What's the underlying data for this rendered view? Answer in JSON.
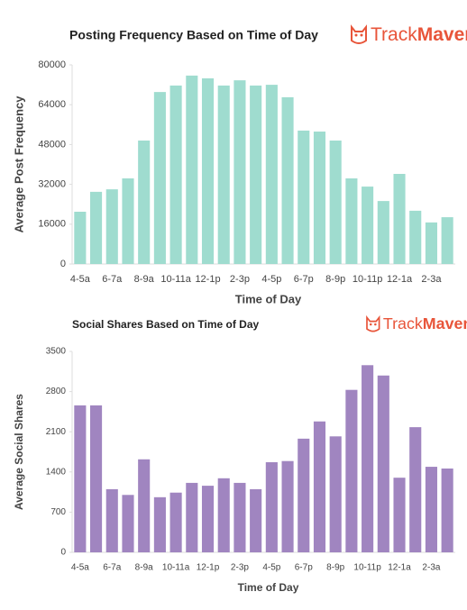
{
  "chart_data": [
    {
      "type": "bar",
      "title": "Posting Frequency Based on Time of Day",
      "x_label": "Time of Day",
      "y_label": "Average Post Frequency",
      "categories": [
        "4-5a",
        null,
        "6-7a",
        null,
        "8-9a",
        null,
        "10-11a",
        null,
        "12-1p",
        null,
        "2-3p",
        null,
        "4-5p",
        null,
        "6-7p",
        null,
        "8-9p",
        null,
        "10-11p",
        null,
        "12-1a",
        null,
        "2-3a",
        null
      ],
      "values": [
        21000,
        29000,
        30000,
        34400,
        49600,
        69100,
        71700,
        75700,
        74600,
        71700,
        73800,
        71700,
        72000,
        67000,
        53600,
        53200,
        49600,
        34400,
        31100,
        25300,
        36200,
        21400,
        16700,
        18800
      ],
      "color": "#9fdccf",
      "ylim": [
        0,
        80000
      ],
      "yticks": [
        0,
        16000,
        32000,
        48000,
        64000,
        80000
      ]
    },
    {
      "type": "bar",
      "title": "Social Shares Based on Time of Day",
      "x_label": "Time of Day",
      "y_label": "Average Social Shares",
      "categories": [
        "4-5a",
        null,
        "6-7a",
        null,
        "8-9a",
        null,
        "10-11a",
        null,
        "12-1p",
        null,
        "2-3p",
        null,
        "4-5p",
        null,
        "6-7p",
        null,
        "8-9p",
        null,
        "10-11p",
        null,
        "12-1a",
        null,
        "2-3a",
        null
      ],
      "values": [
        2560,
        2560,
        1100,
        1000,
        1620,
        960,
        1040,
        1210,
        1160,
        1290,
        1210,
        1100,
        1570,
        1590,
        1980,
        2280,
        2020,
        2830,
        3260,
        3080,
        1300,
        2180,
        1490,
        1460
      ],
      "color": "#a085c0",
      "ylim": [
        0,
        3500
      ],
      "yticks": [
        0,
        700,
        1400,
        2100,
        2800,
        3500
      ]
    }
  ],
  "logo": {
    "light": "Track",
    "bold": "Maven"
  }
}
